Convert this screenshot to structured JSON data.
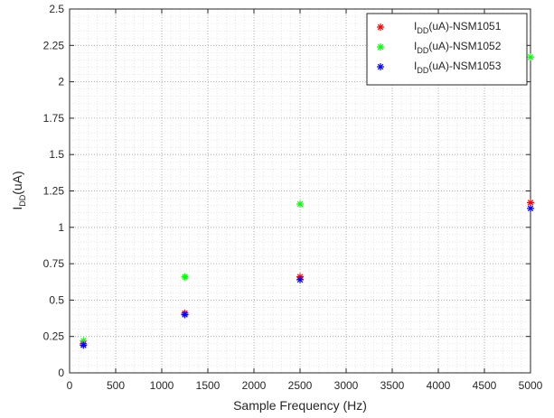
{
  "chart_data": {
    "type": "scatter",
    "x_label": "Sample Frequency (Hz)",
    "y_label_main": "I",
    "y_label_sub": "DD",
    "y_label_tail": "(uA)",
    "xlim": [
      0,
      5000
    ],
    "ylim": [
      0,
      2.5
    ],
    "x_ticks": [
      0,
      500,
      1000,
      1500,
      2000,
      2500,
      3000,
      3500,
      4000,
      4500,
      5000
    ],
    "y_ticks": [
      0,
      0.25,
      0.5,
      0.75,
      1,
      1.25,
      1.5,
      1.75,
      2,
      2.25,
      2.5
    ],
    "x_tick_labels": [
      "0",
      "500",
      "1000",
      "1500",
      "2000",
      "2500",
      "3000",
      "3500",
      "4000",
      "4500",
      "5000"
    ],
    "y_tick_labels": [
      "0",
      "0.25",
      "0.5",
      "0.75",
      "1",
      "1.25",
      "1.5",
      "1.75",
      "2",
      "2.25",
      "2.5"
    ],
    "grid": "major and minor, dotted",
    "legend_position": "top-right",
    "marker": "asterisk",
    "series": [
      {
        "name_prefix": "I",
        "name_sub": "DD",
        "name_suffix": "(uA)-NSM1051",
        "color": "#ff0000",
        "points": [
          [
            150,
            0.2
          ],
          [
            1250,
            0.41
          ],
          [
            2500,
            0.66
          ],
          [
            5000,
            1.17
          ]
        ]
      },
      {
        "name_prefix": "I",
        "name_sub": "DD",
        "name_suffix": "(uA)-NSM1052",
        "color": "#00ff00",
        "points": [
          [
            150,
            0.22
          ],
          [
            1250,
            0.66
          ],
          [
            2500,
            1.16
          ],
          [
            5000,
            2.17
          ]
        ]
      },
      {
        "name_prefix": "I",
        "name_sub": "DD",
        "name_suffix": "(uA)-NSM1053",
        "color": "#0000ff",
        "points": [
          [
            150,
            0.19
          ],
          [
            1250,
            0.4
          ],
          [
            2500,
            0.64
          ],
          [
            5000,
            1.13
          ]
        ]
      }
    ]
  }
}
